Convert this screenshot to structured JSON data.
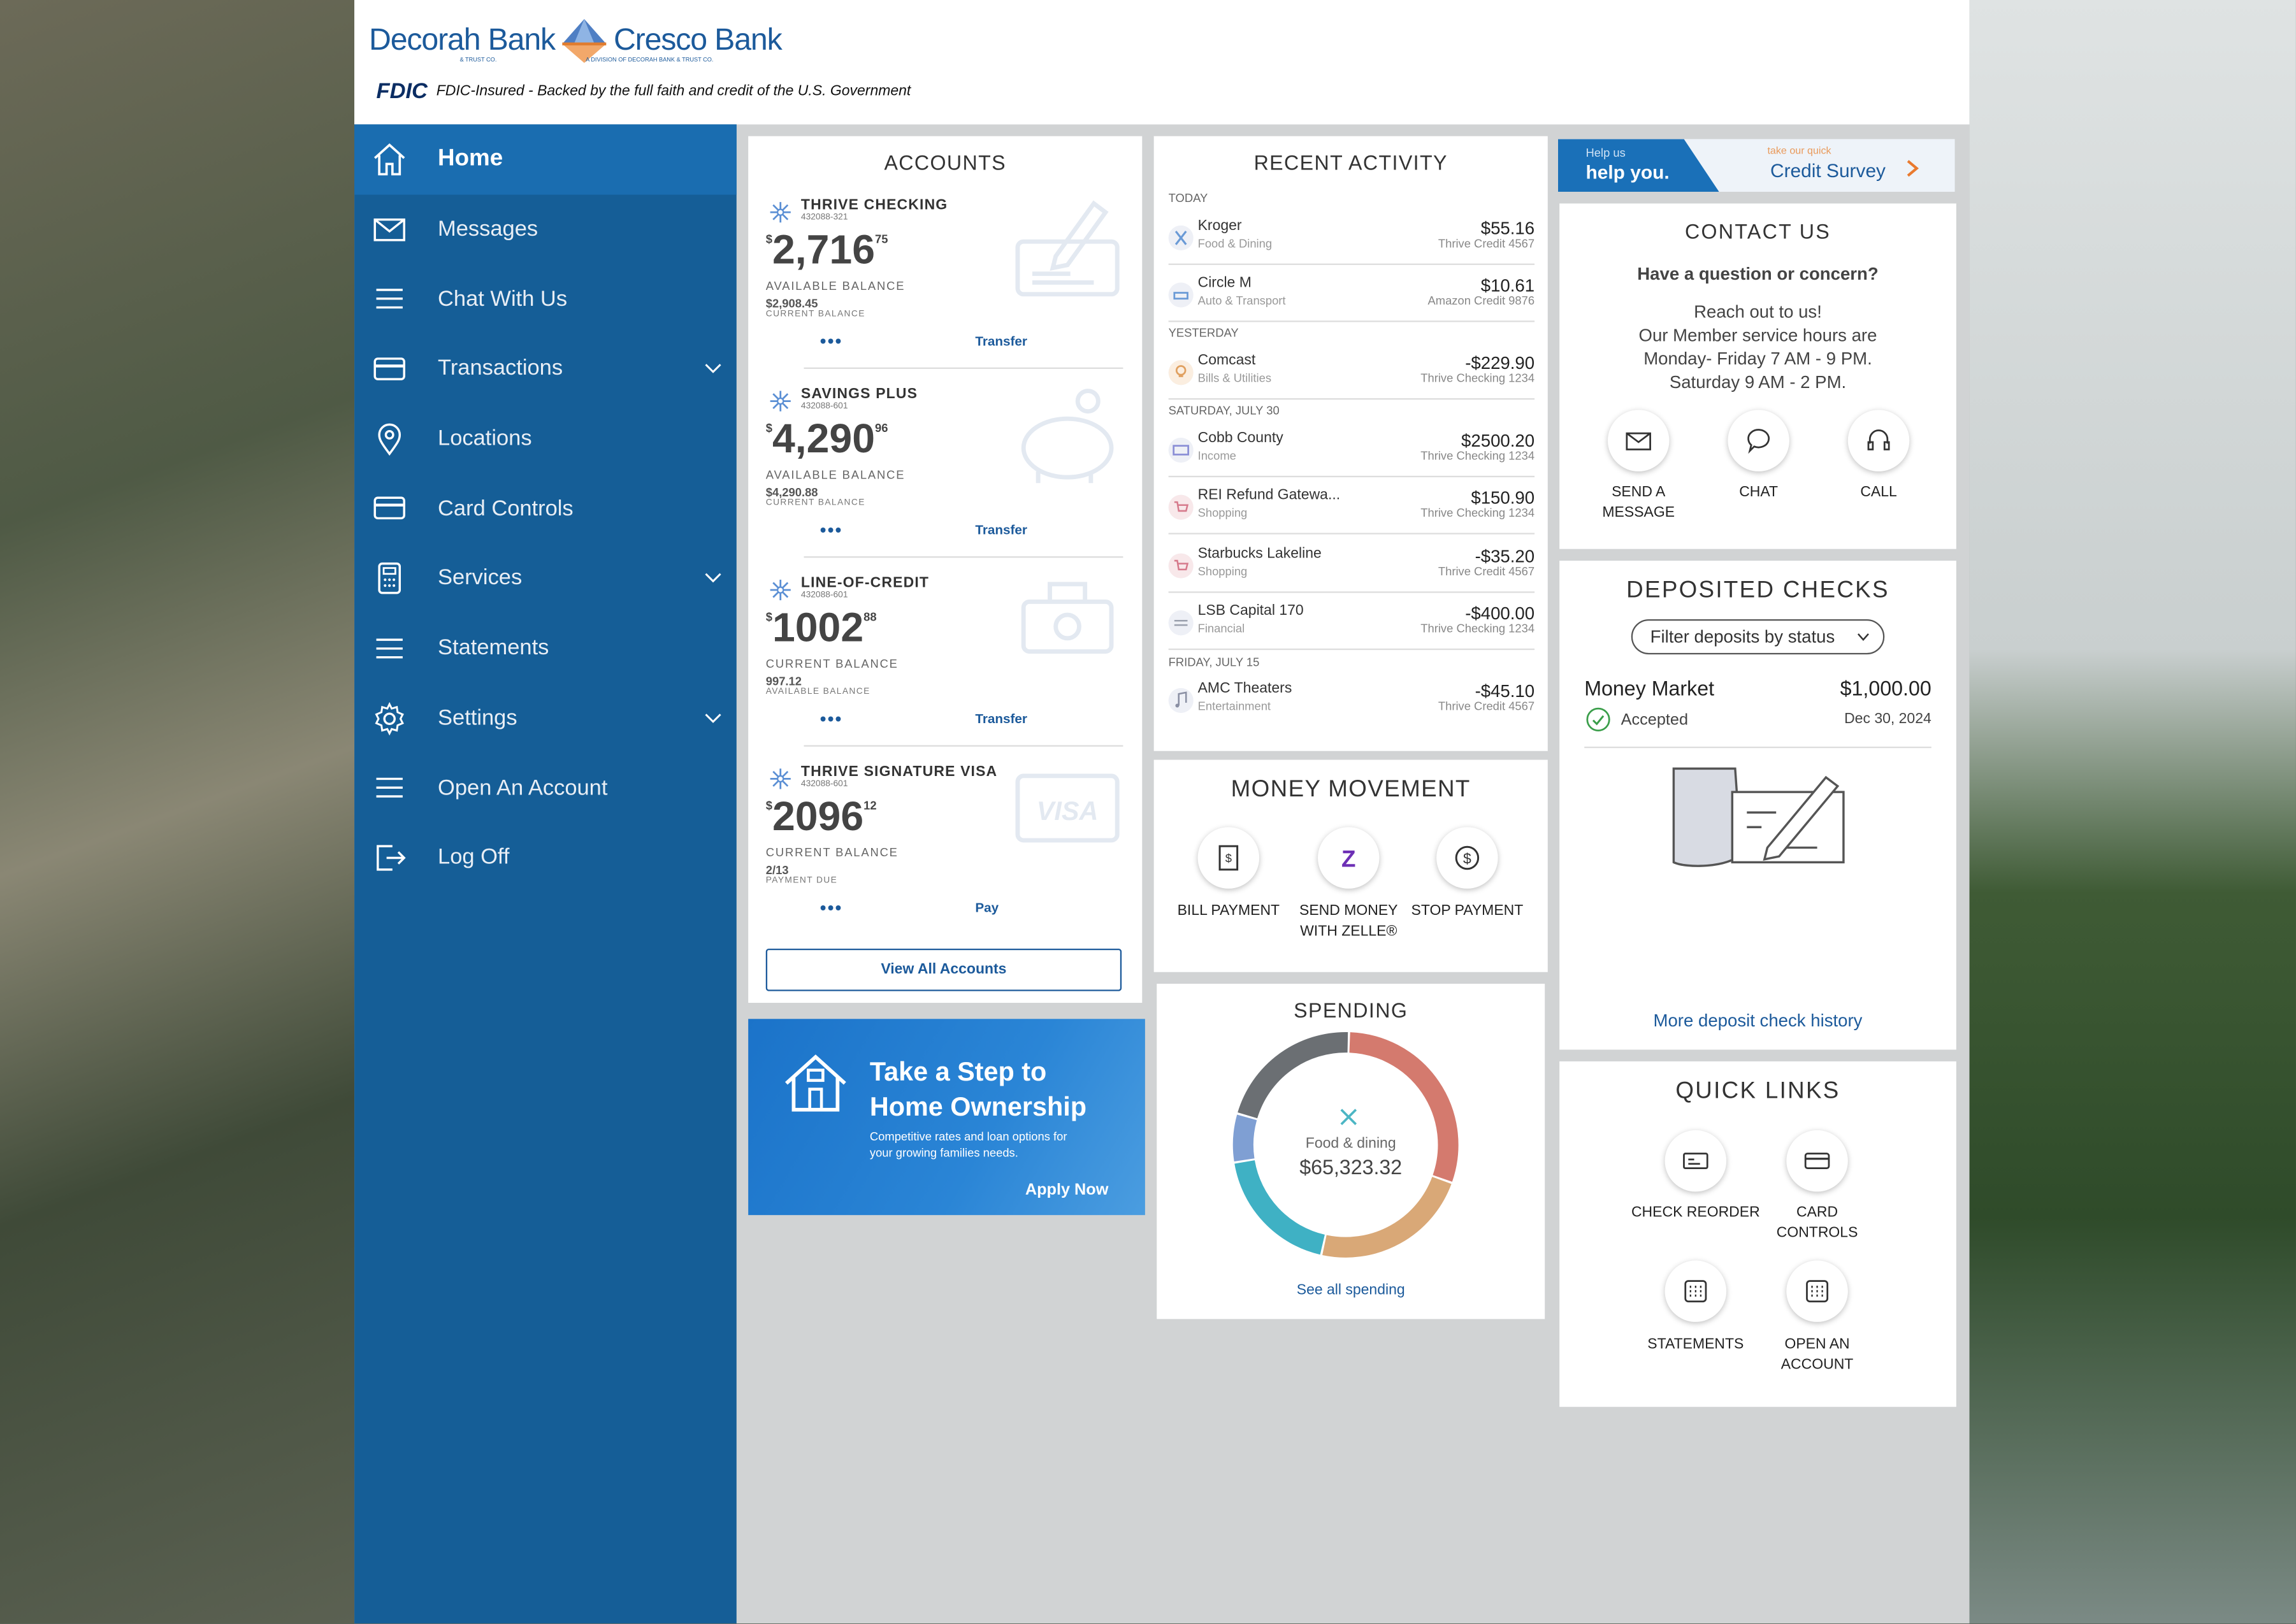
{
  "brand": {
    "name1": "Decorah Bank",
    "sub1": "& TRUST CO.",
    "name2": "Cresco Bank",
    "sub2": "A DIVISION OF DECORAH BANK & TRUST CO."
  },
  "fdic": {
    "logo": "FDIC",
    "text": "FDIC-Insured - Backed by the full faith and credit of the U.S. Government"
  },
  "nav": [
    {
      "label": "Home",
      "icon": "home-icon",
      "active": true
    },
    {
      "label": "Messages",
      "icon": "envelope-icon"
    },
    {
      "label": "Chat With Us",
      "icon": "menu-lines-icon"
    },
    {
      "label": "Transactions",
      "icon": "card-icon",
      "chevron": true
    },
    {
      "label": "Locations",
      "icon": "map-pin-icon"
    },
    {
      "label": "Card Controls",
      "icon": "card-icon"
    },
    {
      "label": "Services",
      "icon": "calculator-icon",
      "chevron": true
    },
    {
      "label": "Statements",
      "icon": "menu-lines-icon"
    },
    {
      "label": "Settings",
      "icon": "gear-icon",
      "chevron": true
    },
    {
      "label": "Open An Account",
      "icon": "menu-lines-icon"
    },
    {
      "label": "Log Off",
      "icon": "logout-icon"
    }
  ],
  "accounts": {
    "title": "ACCOUNTS",
    "items": [
      {
        "name": "THRIVE CHECKING",
        "number": "432088-321",
        "sym": "$",
        "whole": "2,716",
        "cents": "75",
        "label1": "AVAILABLE BALANCE",
        "value2": "$2,908.45",
        "label2": "CURRENT BALANCE",
        "dots": "•••",
        "action": "Transfer",
        "icon": "check-writing-icon"
      },
      {
        "name": "SAVINGS PLUS",
        "number": "432088-601",
        "sym": "$",
        "whole": "4,290",
        "cents": "96",
        "label1": "AVAILABLE BALANCE",
        "value2": "$4,290.88",
        "label2": "CURRENT BALANCE",
        "dots": "•••",
        "action": "Transfer",
        "icon": "piggy-bank-icon"
      },
      {
        "name": "LINE-OF-CREDIT",
        "number": "432088-601",
        "sym": "$",
        "whole": "1002",
        "cents": "88",
        "label1": "CURRENT BALANCE",
        "value2": "997.12",
        "label2": "AVAILABLE BALANCE",
        "dots": "•••",
        "action": "Transfer",
        "icon": "cash-hand-icon"
      },
      {
        "name": "THRIVE SIGNATURE VISA",
        "number": "432088-601",
        "sym": "$",
        "whole": "2096",
        "cents": "12",
        "label1": "CURRENT BALANCE",
        "value2": "2/13",
        "label2": "PAYMENT DUE",
        "dots": "•••",
        "action": "Pay",
        "icon": "visa-card-icon"
      }
    ],
    "view_all": "View All Accounts"
  },
  "promo": {
    "title1": "Take a Step to",
    "title2": "Home Ownership",
    "body1": "Competitive rates and loan options for",
    "body2": "your growing families needs.",
    "cta": "Apply Now"
  },
  "activity": {
    "title": "RECENT ACTIVITY",
    "groups": [
      {
        "label": "TODAY",
        "rows": [
          {
            "merchant": "Kroger",
            "category": "Food & Dining",
            "amount": "$55.16",
            "source": "Thrive Credit 4567",
            "icon": "utensils-icon"
          },
          {
            "merchant": "Circle M",
            "category": "Auto & Transport",
            "amount": "$10.61",
            "source": "Amazon Credit 9876",
            "icon": "car-icon"
          }
        ]
      },
      {
        "label": "YESTERDAY",
        "rows": [
          {
            "merchant": "Comcast",
            "category": "Bills & Utilities",
            "amount": "-$229.90",
            "source": "Thrive Checking 1234",
            "icon": "lightbulb-icon"
          }
        ]
      },
      {
        "label": "SATURDAY, JULY 30",
        "rows": [
          {
            "merchant": "Cobb County",
            "category": "Income",
            "amount": "$2500.20",
            "source": "Thrive Checking 1234",
            "icon": "money-icon"
          },
          {
            "merchant": "REI Refund Gatewa...",
            "category": "Shopping",
            "amount": "$150.90",
            "source": "Thrive Checking 1234",
            "icon": "cart-icon"
          },
          {
            "merchant": "Starbucks Lakeline",
            "category": "Shopping",
            "amount": "-$35.20",
            "source": "Thrive Credit 4567",
            "icon": "cart-icon"
          },
          {
            "merchant": "LSB Capital 170",
            "category": "Financial",
            "amount": "-$400.00",
            "source": "Thrive Checking 1234",
            "icon": "exchange-icon"
          }
        ]
      },
      {
        "label": "FRIDAY, JULY 15",
        "rows": [
          {
            "merchant": "AMC Theaters",
            "category": "Entertainment",
            "amount": "-$45.10",
            "source": "Thrive Credit 4567",
            "icon": "music-icon"
          }
        ]
      }
    ]
  },
  "money": {
    "title": "MONEY MOVEMENT",
    "items": [
      {
        "l1": "BILL PAYMENT",
        "l2": "",
        "icon": "bill-icon"
      },
      {
        "l1": "SEND MONEY",
        "l2": "WITH ZELLE®",
        "icon": "zelle-icon"
      },
      {
        "l1": "STOP PAYMENT",
        "l2": "",
        "icon": "dollar-circle-icon"
      }
    ]
  },
  "spending": {
    "title": "SPENDING",
    "center_label": "Food & dining",
    "center_value": "$65,323.32",
    "link": "See all spending",
    "segments": [
      {
        "color": "#d47a6e",
        "share": 0.3
      },
      {
        "color": "#d9a877",
        "share": 0.23
      },
      {
        "color": "#3fb1c4",
        "share": 0.19
      },
      {
        "color": "#7f9fd3",
        "share": 0.07
      },
      {
        "color": "#6b6f73",
        "share": 0.21
      }
    ]
  },
  "survey": {
    "small1": "Help us",
    "big1": "help you.",
    "small2": "take our quick",
    "big2": "Credit Survey"
  },
  "contact": {
    "title": "CONTACT US",
    "question": "Have a question or concern?",
    "lines": [
      "Reach out to us!",
      "Our Member service hours are",
      "Monday- Friday 7 AM - 9 PM.",
      "Saturday 9 AM - 2 PM."
    ],
    "buttons": [
      {
        "l1": "SEND A",
        "l2": "MESSAGE"
      },
      {
        "l1": "CHAT",
        "l2": ""
      },
      {
        "l1": "CALL",
        "l2": ""
      }
    ]
  },
  "deposits": {
    "title": "DEPOSITED CHECKS",
    "filter": "Filter deposits by status",
    "account": "Money Market",
    "amount": "$1,000.00",
    "status": "Accepted",
    "date": "Dec 30, 2024",
    "link": "More deposit check history"
  },
  "quicklinks": {
    "title": "QUICK LINKS",
    "items": [
      {
        "l1": "CHECK REORDER",
        "l2": "",
        "icon": "check-reorder-icon"
      },
      {
        "l1": "CARD",
        "l2": "CONTROLS",
        "icon": "card-icon"
      },
      {
        "l1": "STATEMENTS",
        "l2": "",
        "icon": "grid-icon"
      },
      {
        "l1": "OPEN AN",
        "l2": "ACCOUNT",
        "icon": "grid-icon"
      }
    ]
  },
  "colors": {
    "nav": "#155e97",
    "nav_active": "#1a6db0",
    "accent": "#1c5a9b",
    "promo": "#1b73c9"
  }
}
